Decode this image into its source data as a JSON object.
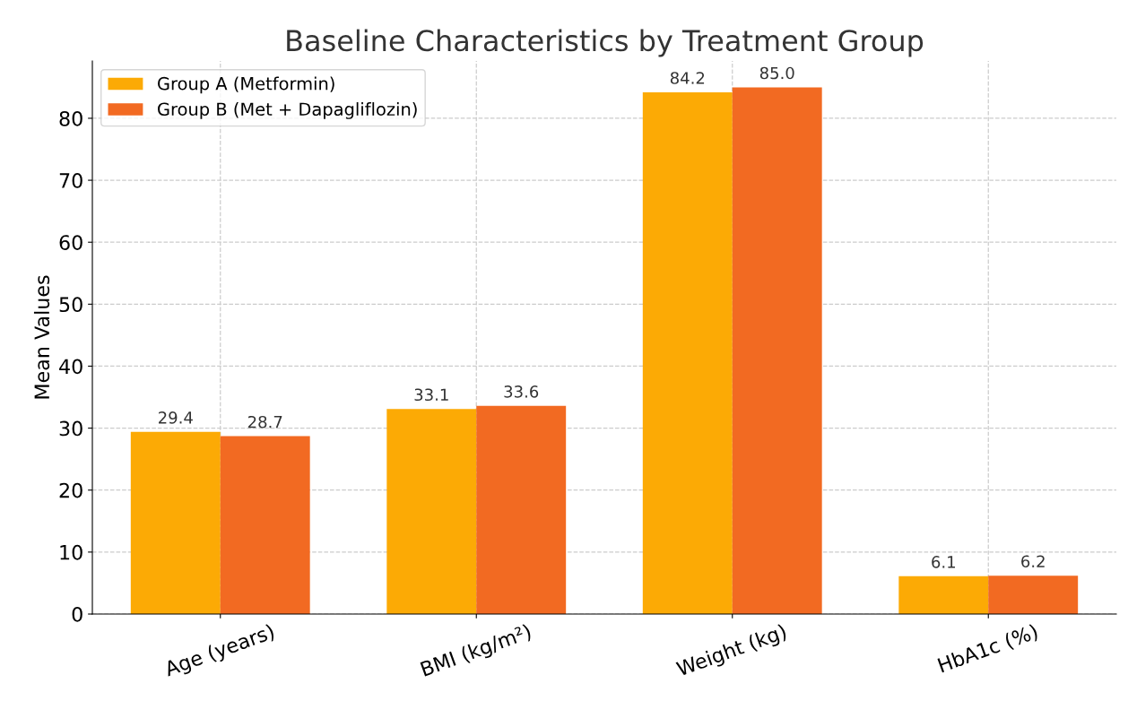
{
  "chart_data": {
    "type": "bar",
    "title": "Baseline Characteristics by Treatment Group",
    "ylabel": "Mean Values",
    "categories": [
      "Age (years)",
      "BMI (kg/m²)",
      "Weight (kg)",
      "HbA1c (%)"
    ],
    "series": [
      {
        "name": "Group A (Metformin)",
        "color": "#fcaa05",
        "values": [
          29.4,
          33.1,
          84.2,
          6.1
        ],
        "value_labels": [
          "29.4",
          "33.1",
          "84.2",
          "6.1"
        ]
      },
      {
        "name": "Group B (Met + Dapagliflozin)",
        "color": "#f26a22",
        "values": [
          28.7,
          33.6,
          85.0,
          6.2
        ],
        "value_labels": [
          "28.7",
          "33.6",
          "85.0",
          "6.2"
        ]
      }
    ],
    "ylim": [
      0,
      89.25
    ],
    "yticks": [
      0,
      10,
      20,
      30,
      40,
      50,
      60,
      70,
      80
    ],
    "grid": true,
    "legend": "top left"
  }
}
